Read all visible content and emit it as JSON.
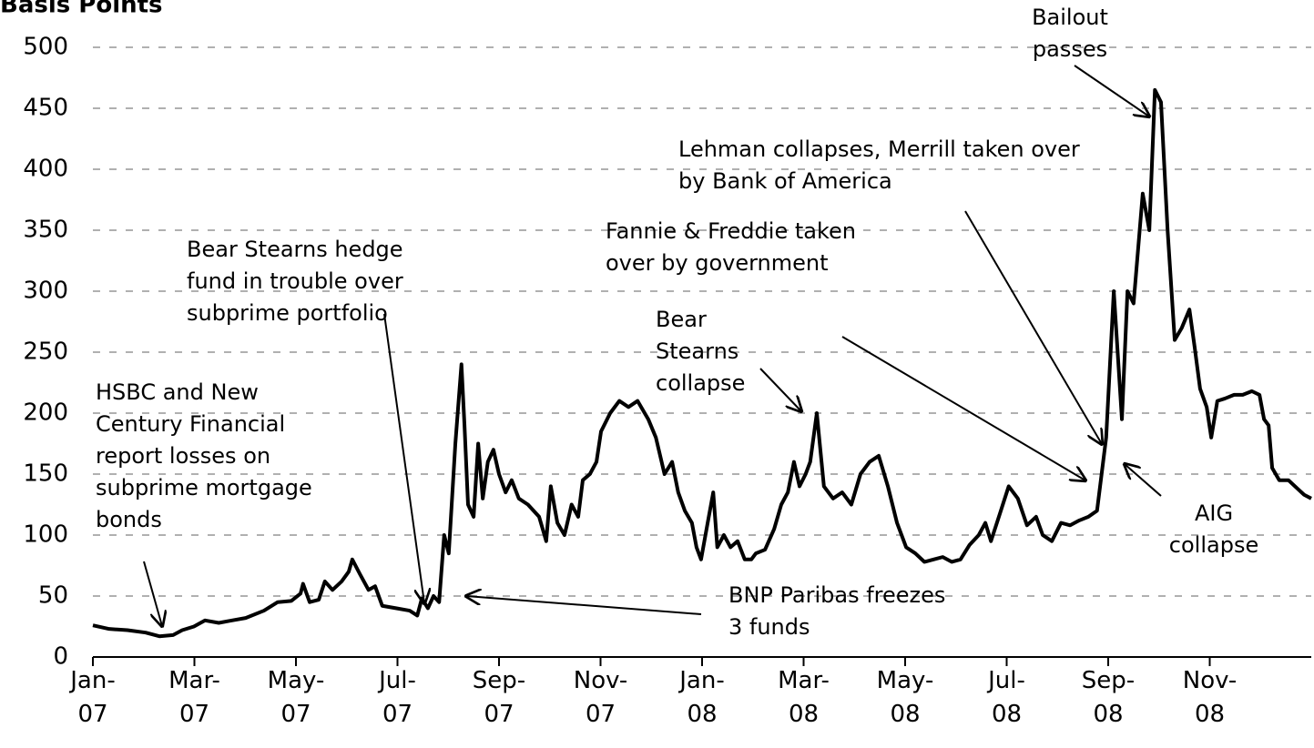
{
  "chart_data": {
    "type": "line",
    "title": "Basis Points",
    "x": [
      0,
      0.32,
      0.68,
      1.04,
      1.31,
      1.58,
      1.76,
      1.99,
      2.21,
      2.48,
      2.74,
      3.01,
      3.37,
      3.64,
      3.91,
      4.09,
      4.14,
      4.27,
      4.45,
      4.57,
      4.72,
      4.9,
      5.04,
      5.11,
      5.26,
      5.43,
      5.56,
      5.7,
      5.97,
      6.24,
      6.39,
      6.48,
      6.6,
      6.71,
      6.82,
      6.92,
      7.01,
      7.14,
      7.26,
      7.32,
      7.39,
      7.5,
      7.59,
      7.68,
      7.78,
      7.89,
      8.0,
      8.13,
      8.25,
      8.39,
      8.57,
      8.79,
      8.93,
      9.02,
      9.15,
      9.29,
      9.43,
      9.56,
      9.65,
      9.79,
      9.92,
      10.01,
      10.19,
      10.37,
      10.55,
      10.73,
      10.94,
      11.09,
      11.26,
      11.41,
      11.53,
      11.66,
      11.8,
      11.89,
      11.98,
      12.11,
      12.22,
      12.3,
      12.43,
      12.56,
      12.7,
      12.84,
      12.97,
      13.06,
      13.24,
      13.42,
      13.56,
      13.69,
      13.81,
      13.92,
      14.04,
      14.13,
      14.26,
      14.4,
      14.58,
      14.76,
      14.94,
      15.12,
      15.3,
      15.48,
      15.66,
      15.84,
      16.02,
      16.2,
      16.38,
      16.56,
      16.74,
      16.92,
      17.09,
      17.27,
      17.45,
      17.58,
      17.69,
      17.87,
      18.04,
      18.22,
      18.4,
      18.58,
      18.71,
      18.89,
      19.07,
      19.25,
      19.43,
      19.61,
      19.78,
      19.96,
      20.11,
      20.27,
      20.38,
      20.5,
      20.68,
      20.81,
      20.92,
      21.04,
      21.17,
      21.31,
      21.45,
      21.6,
      21.7,
      21.81,
      21.94,
      22.03,
      22.15,
      22.3,
      22.48,
      22.65,
      22.83,
      22.98,
      23.07,
      23.16,
      23.23,
      23.37,
      23.55,
      23.73,
      23.86,
      24.0
    ],
    "series": [
      {
        "color": "#000000",
        "values": [
          26,
          23,
          22,
          20,
          17,
          18,
          22,
          25,
          30,
          28,
          30,
          32,
          38,
          45,
          46,
          52,
          60,
          45,
          47,
          62,
          55,
          62,
          70,
          80,
          68,
          55,
          58,
          42,
          40,
          38,
          34,
          48,
          40,
          50,
          45,
          100,
          85,
          175,
          240,
          190,
          125,
          115,
          175,
          130,
          160,
          170,
          150,
          135,
          145,
          130,
          125,
          115,
          95,
          140,
          110,
          100,
          125,
          115,
          145,
          150,
          160,
          185,
          200,
          210,
          205,
          210,
          195,
          180,
          150,
          160,
          135,
          120,
          110,
          90,
          80,
          110,
          135,
          90,
          100,
          90,
          95,
          80,
          80,
          85,
          88,
          105,
          125,
          135,
          160,
          140,
          150,
          160,
          200,
          140,
          130,
          135,
          125,
          150,
          160,
          165,
          140,
          110,
          90,
          85,
          78,
          80,
          82,
          78,
          80,
          92,
          100,
          110,
          95,
          118,
          140,
          130,
          108,
          115,
          100,
          95,
          110,
          108,
          112,
          115,
          120,
          180,
          300,
          195,
          300,
          290,
          380,
          350,
          465,
          455,
          350,
          260,
          270,
          285,
          255,
          220,
          205,
          180,
          210,
          212,
          215,
          215,
          218,
          215,
          195,
          190,
          155,
          145,
          145,
          138,
          133,
          130
        ]
      }
    ],
    "xlim": [
      0,
      24
    ],
    "xticks": [
      {
        "value": 0,
        "label": "Jan-07"
      },
      {
        "value": 2,
        "label": "Mar-07"
      },
      {
        "value": 4,
        "label": "May-07"
      },
      {
        "value": 6,
        "label": "Jul-07"
      },
      {
        "value": 8,
        "label": "Sep-07"
      },
      {
        "value": 10,
        "label": "Nov-07"
      },
      {
        "value": 12,
        "label": "Jan-08"
      },
      {
        "value": 14,
        "label": "Mar-08"
      },
      {
        "value": 16,
        "label": "May-08"
      },
      {
        "value": 18,
        "label": "Jul-08"
      },
      {
        "value": 20,
        "label": "Sep-08"
      },
      {
        "value": 22,
        "label": "Nov-08"
      }
    ],
    "ylim": [
      0,
      500
    ],
    "yticks": [
      0,
      50,
      100,
      150,
      200,
      250,
      300,
      350,
      400,
      450,
      500
    ],
    "grid": true,
    "annotations": [
      {
        "lines": [
          "HSBC and New",
          "Century Financial",
          "report losses on",
          "subprime mortgage",
          "bonds"
        ]
      },
      {
        "lines": [
          "Bear Stearns hedge",
          "fund in trouble over",
          "subprime portfolio"
        ]
      },
      {
        "lines": [
          "BNP Paribas freezes",
          "3 funds"
        ]
      },
      {
        "lines": [
          "Bear",
          "Stearns",
          "collapse"
        ]
      },
      {
        "lines": [
          "Fannie & Freddie taken",
          "over by government"
        ]
      },
      {
        "lines": [
          "Lehman collapses, Merrill taken over",
          "by Bank of America"
        ]
      },
      {
        "lines": [
          "Bailout",
          "passes"
        ]
      },
      {
        "lines": [
          "AIG",
          "collapse"
        ]
      }
    ]
  }
}
